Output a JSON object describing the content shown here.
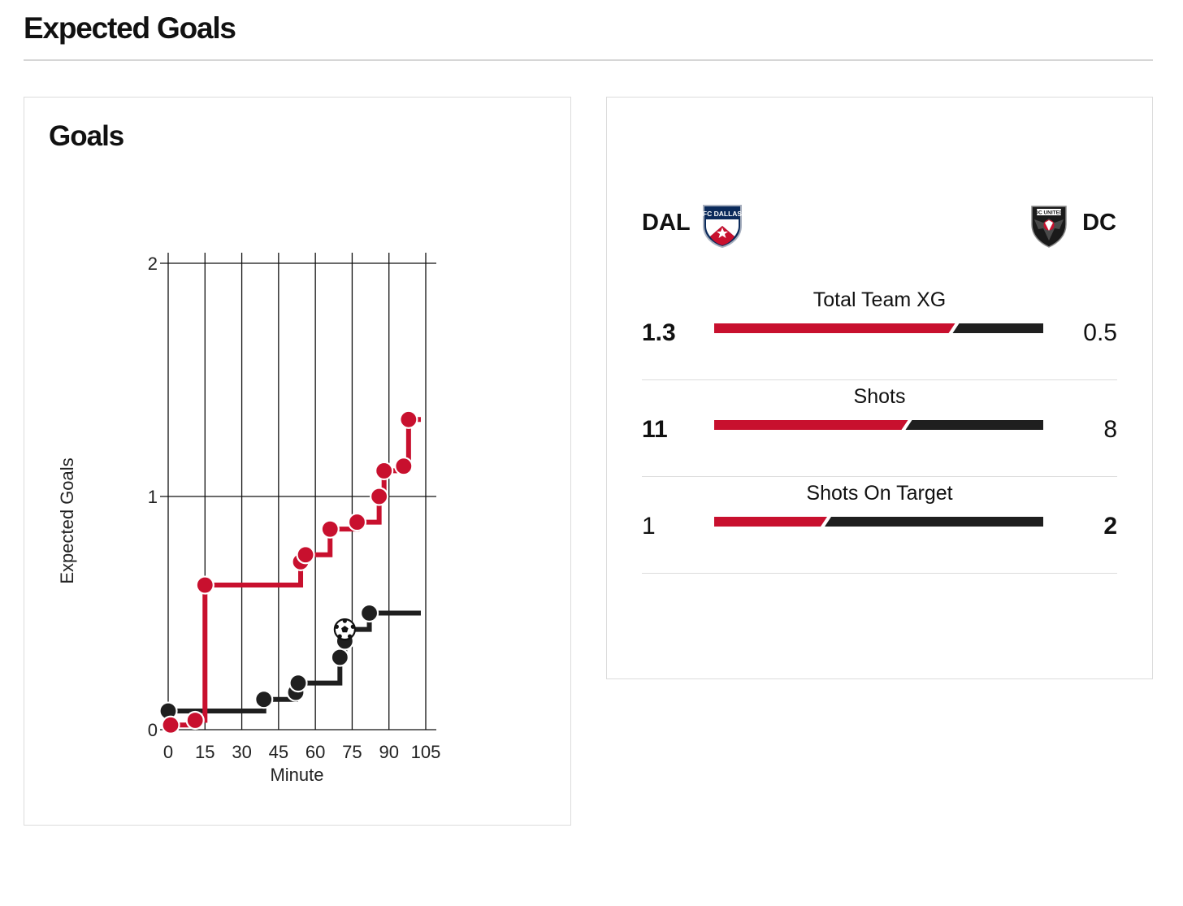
{
  "page": {
    "title": "Expected Goals"
  },
  "colors": {
    "home": "#c8102e",
    "away": "#1f1f1f",
    "grid": "#111111"
  },
  "chart_data": {
    "type": "line",
    "title": "Goals",
    "xlabel": "Minute",
    "ylabel": "Expected Goals",
    "xlim": [
      0,
      105
    ],
    "ylim": [
      0,
      2
    ],
    "xticks": [
      0,
      15,
      30,
      45,
      60,
      75,
      90,
      105
    ],
    "yticks": [
      0,
      1,
      2
    ],
    "grid": true,
    "step": true,
    "series": [
      {
        "team": "home",
        "end_minute": 103,
        "shots": [
          {
            "minute": 1,
            "xg": 0.02
          },
          {
            "minute": 11,
            "xg": 0.04
          },
          {
            "minute": 15,
            "xg": 0.62
          },
          {
            "minute": 54,
            "xg": 0.72
          },
          {
            "minute": 56,
            "xg": 0.75
          },
          {
            "minute": 66,
            "xg": 0.86
          },
          {
            "minute": 77,
            "xg": 0.89
          },
          {
            "minute": 86,
            "xg": 1.0
          },
          {
            "minute": 88,
            "xg": 1.11
          },
          {
            "minute": 96,
            "xg": 1.13
          },
          {
            "minute": 98,
            "xg": 1.33
          }
        ]
      },
      {
        "team": "away",
        "end_minute": 103,
        "shots": [
          {
            "minute": 0,
            "xg": 0.08
          },
          {
            "minute": 39,
            "xg": 0.13
          },
          {
            "minute": 52,
            "xg": 0.16
          },
          {
            "minute": 53,
            "xg": 0.2
          },
          {
            "minute": 70,
            "xg": 0.31
          },
          {
            "minute": 72,
            "xg": 0.38
          },
          {
            "minute": 72,
            "xg": 0.43,
            "goal": true
          },
          {
            "minute": 82,
            "xg": 0.5
          }
        ]
      }
    ]
  },
  "teams": {
    "home": {
      "abbr": "DAL",
      "crest_icon": "fc-dallas-crest-icon"
    },
    "away": {
      "abbr": "DC",
      "crest_icon": "dc-united-crest-icon"
    }
  },
  "stats": [
    {
      "label": "Total Team XG",
      "home": "1.3",
      "away": "0.5",
      "home_value": 1.3,
      "away_value": 0.5,
      "leader": "home"
    },
    {
      "label": "Shots",
      "home": "11",
      "away": "8",
      "home_value": 11,
      "away_value": 8,
      "leader": "home"
    },
    {
      "label": "Shots On Target",
      "home": "1",
      "away": "2",
      "home_value": 1,
      "away_value": 2,
      "leader": "away"
    }
  ]
}
